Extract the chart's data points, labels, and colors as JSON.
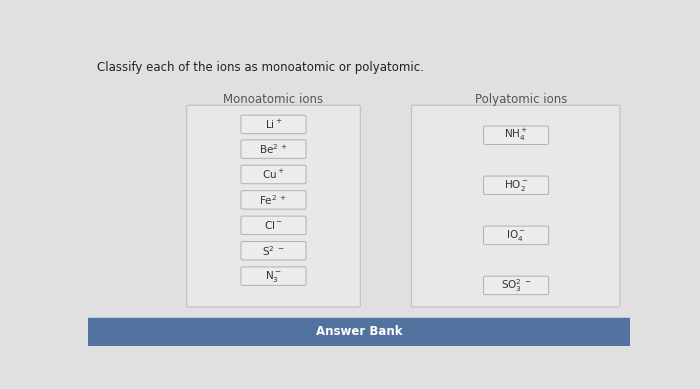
{
  "title": "Classify each of the ions as monoatomic or polyatomic.",
  "mono_label": "Monoatomic ions",
  "poly_label": "Polyatomic ions",
  "mono_ions": [
    {
      "label": "Li$^+$"
    },
    {
      "label": "Be$^{2\\ +}$"
    },
    {
      "label": "Cu$^+$"
    },
    {
      "label": "Fe$^{2\\ +}$"
    },
    {
      "label": "Cl$^-$"
    },
    {
      "label": "S$^{2\\ -}$"
    },
    {
      "label": "N$_3^-$"
    }
  ],
  "poly_ions": [
    {
      "label": "NH$_4^+$"
    },
    {
      "label": "HO$_2^-$"
    },
    {
      "label": "IO$_4^-$"
    },
    {
      "label": "SO$_3^{2\\ -}$"
    }
  ],
  "answer_bank_label": "Answer Bank",
  "bg_color": "#d8d8d8",
  "outer_bg": "#e0e0e0",
  "box_bg": "#e8e8e8",
  "ion_box_color": "#ececec",
  "ion_box_edge": "#b0b0b0",
  "title_color": "#222222",
  "answer_bar_color": "#5272a0",
  "answer_text_color": "#ffffff",
  "label_color": "#555555"
}
